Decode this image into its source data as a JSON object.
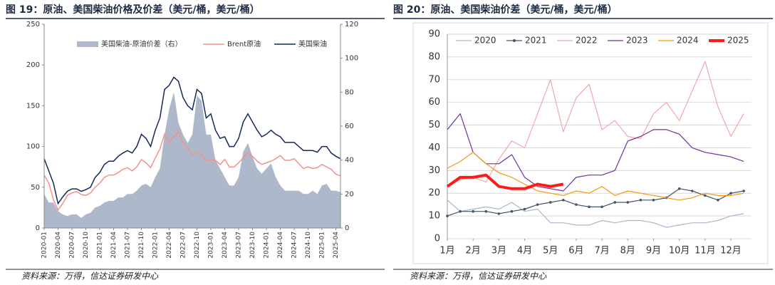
{
  "chart_data": [
    {
      "type": "line",
      "title": "图 19：原油、美国柴油价格及价差（美元/桶，美元/桶）",
      "source": "资料来源：万得，信达证券研发中心",
      "categories": [
        "2020-01",
        null,
        null,
        "2020-04",
        null,
        null,
        "2020-07",
        null,
        null,
        "2020-10",
        null,
        null,
        "2021-01",
        null,
        null,
        "2021-04",
        null,
        null,
        "2021-07",
        null,
        null,
        "2021-10",
        null,
        null,
        "2022-01",
        null,
        null,
        "2022-04",
        null,
        null,
        "2022-07",
        null,
        null,
        "2022-10",
        null,
        null,
        "2023-01",
        null,
        null,
        "2023-04",
        null,
        null,
        "2023-07",
        null,
        null,
        "2023-10",
        null,
        null,
        "2024-01",
        null,
        null,
        "2024-04",
        null,
        null,
        "2024-07",
        null,
        null,
        "2024-10",
        null,
        null,
        "2025-01",
        null,
        null,
        "2025-04",
        null
      ],
      "ylim": [
        0,
        250
      ],
      "yticks": [
        0,
        50,
        100,
        150,
        200,
        250
      ],
      "y2lim": [
        0,
        120
      ],
      "y2ticks": [
        0,
        20,
        40,
        60,
        80,
        100,
        120
      ],
      "series": [
        {
          "name": "美国柴油-原油价差（右）",
          "color": "#adb9ca",
          "axis": "y2",
          "style": "area",
          "values": [
            20,
            15,
            15,
            10,
            8,
            7,
            8,
            8,
            6,
            8,
            9,
            12,
            13,
            15,
            16,
            16,
            18,
            18,
            20,
            20,
            22,
            25,
            26,
            24,
            30,
            35,
            55,
            70,
            80,
            62,
            55,
            50,
            55,
            78,
            75,
            55,
            55,
            40,
            35,
            30,
            25,
            25,
            30,
            45,
            50,
            42,
            35,
            32,
            35,
            38,
            30,
            25,
            22,
            22,
            22,
            22,
            20,
            20,
            22,
            20,
            25,
            26,
            22,
            22,
            21
          ]
        },
        {
          "name": "Brent原油",
          "color": "#f4908e",
          "style": "line",
          "values": [
            65,
            55,
            35,
            22,
            30,
            40,
            43,
            45,
            41,
            40,
            43,
            50,
            55,
            62,
            65,
            65,
            68,
            72,
            74,
            70,
            75,
            84,
            80,
            74,
            86,
            97,
            115,
            105,
            112,
            118,
            105,
            98,
            90,
            93,
            90,
            82,
            84,
            83,
            78,
            84,
            75,
            75,
            80,
            86,
            93,
            88,
            82,
            78,
            80,
            82,
            85,
            89,
            83,
            83,
            85,
            79,
            73,
            75,
            73,
            74,
            78,
            75,
            72,
            66,
            64
          ]
        },
        {
          "name": "美国柴油",
          "color": "#14285a",
          "style": "line",
          "values": [
            85,
            70,
            55,
            30,
            38,
            45,
            48,
            48,
            45,
            47,
            50,
            62,
            68,
            78,
            82,
            82,
            88,
            92,
            95,
            92,
            100,
            115,
            110,
            100,
            120,
            135,
            170,
            175,
            185,
            180,
            160,
            150,
            145,
            170,
            165,
            135,
            140,
            120,
            110,
            112,
            100,
            100,
            110,
            130,
            140,
            130,
            120,
            112,
            115,
            120,
            115,
            112,
            105,
            105,
            105,
            100,
            95,
            95,
            95,
            93,
            100,
            100,
            92,
            88,
            85
          ]
        }
      ]
    },
    {
      "type": "line",
      "title": "图 20：原油、美国柴油价差（美元/桶，美元/桶）",
      "source": "资料来源：万得，信达证券研发中心",
      "x": [
        1,
        1.5,
        2,
        2.5,
        3,
        3.5,
        4,
        4.5,
        5,
        5.5,
        6,
        6.5,
        7,
        7.5,
        8,
        8.5,
        9,
        9.5,
        10,
        10.5,
        11,
        11.5,
        12,
        12.5
      ],
      "xlim": [
        1,
        12.8
      ],
      "xticks": [
        {
          "value": 1,
          "label": "1月"
        },
        {
          "value": 2,
          "label": "2月"
        },
        {
          "value": 3,
          "label": "3月"
        },
        {
          "value": 4,
          "label": "4月"
        },
        {
          "value": 5,
          "label": "5月"
        },
        {
          "value": 6,
          "label": "6月"
        },
        {
          "value": 7,
          "label": "7月"
        },
        {
          "value": 8,
          "label": "8月"
        },
        {
          "value": 9,
          "label": "9月"
        },
        {
          "value": 10,
          "label": "10月"
        },
        {
          "value": 11,
          "label": "11月"
        },
        {
          "value": 12,
          "label": "12月"
        }
      ],
      "ylim": [
        0,
        90
      ],
      "yticks": [
        0,
        10,
        20,
        30,
        40,
        50,
        60,
        70,
        80,
        90
      ],
      "grid": true,
      "series": [
        {
          "name": "2020",
          "color": "#a9b8cc",
          "values": [
            17,
            12,
            13,
            14,
            13,
            16,
            12,
            13,
            7,
            7,
            6,
            6,
            8,
            7,
            8,
            8,
            7,
            5,
            6,
            7,
            7,
            8,
            10,
            11
          ]
        },
        {
          "name": "2021",
          "color": "#44546a",
          "marker": true,
          "values": [
            10,
            12,
            12,
            12,
            11,
            12,
            13,
            15,
            16,
            17,
            15,
            14,
            14,
            16,
            16,
            17,
            17,
            18,
            22,
            21,
            19,
            17,
            20,
            21
          ]
        },
        {
          "name": "2022",
          "color": "#f4a6a6",
          "values": [
            23,
            26,
            27,
            25,
            35,
            43,
            40,
            55,
            70,
            47,
            62,
            68,
            48,
            52,
            45,
            44,
            55,
            60,
            52,
            65,
            78,
            58,
            45,
            55
          ]
        },
        {
          "name": "2023",
          "color": "#7030a0",
          "values": [
            48,
            55,
            38,
            33,
            33,
            37,
            27,
            23,
            22,
            21,
            27,
            28,
            28,
            30,
            43,
            45,
            48,
            48,
            46,
            40,
            38,
            37,
            36,
            34
          ]
        },
        {
          "name": "2024",
          "color": "#f59a12",
          "values": [
            31,
            34,
            38,
            33,
            29,
            27,
            24,
            21,
            20,
            19,
            21,
            20,
            23,
            19,
            21,
            20,
            19,
            18,
            17,
            18,
            20,
            19,
            19,
            20
          ]
        },
        {
          "name": "2025",
          "color": "#ff1a1a",
          "width": 4,
          "values": [
            23,
            27,
            27,
            28,
            23,
            22,
            22,
            24,
            23,
            24,
            null,
            null,
            null,
            null,
            null,
            null,
            null,
            null,
            null,
            null,
            null,
            null,
            null,
            null
          ]
        }
      ]
    }
  ]
}
